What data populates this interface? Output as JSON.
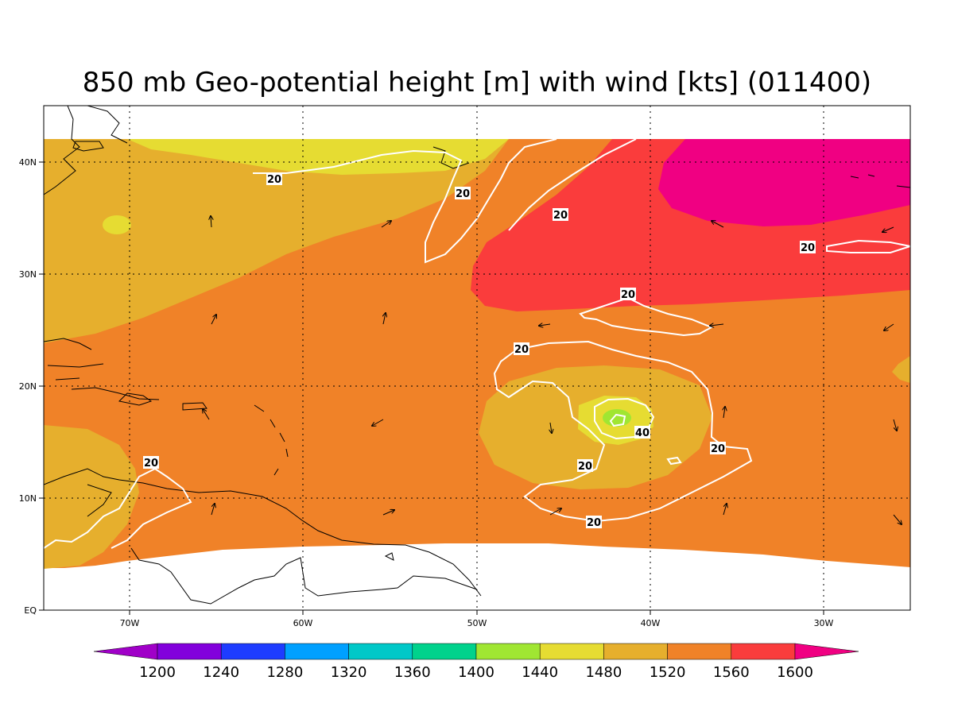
{
  "title": "850 mb Geo-potential height [m] with wind [kts] (011400)",
  "map": {
    "lon_range": [
      -75,
      -25
    ],
    "lat_range": [
      0,
      45
    ],
    "lon_ticks": [
      "70W",
      "60W",
      "50W",
      "40W",
      "30W"
    ],
    "lat_ticks": [
      "EQ",
      "10N",
      "20N",
      "30N",
      "40N"
    ]
  },
  "fill_colors": {
    "c1440": "#a0e632",
    "c1480": "#e6dc32",
    "c1520": "#e6af2d",
    "c1560": "#f08228",
    "c1600": "#fa3c3c",
    "cmax": "#f00082"
  },
  "wind_contour_labels": [
    {
      "id": "l1",
      "text": "20"
    },
    {
      "id": "l2",
      "text": "20"
    },
    {
      "id": "l3",
      "text": "20"
    },
    {
      "id": "l4",
      "text": "20"
    },
    {
      "id": "l5",
      "text": "20"
    },
    {
      "id": "l6",
      "text": "20"
    },
    {
      "id": "l7",
      "text": "40"
    },
    {
      "id": "l8",
      "text": "20"
    },
    {
      "id": "l9",
      "text": "20"
    },
    {
      "id": "l10",
      "text": "20"
    },
    {
      "id": "l11",
      "text": "20"
    }
  ],
  "colorbar": {
    "labels": [
      "1200",
      "1240",
      "1280",
      "1320",
      "1360",
      "1400",
      "1440",
      "1480",
      "1520",
      "1560",
      "1600"
    ],
    "colors": [
      "#a000c8",
      "#8200dc",
      "#1e3cff",
      "#00a0ff",
      "#00c8c8",
      "#00d28c",
      "#a0e632",
      "#e6dc32",
      "#e6af2d",
      "#f08228",
      "#fa3c3c",
      "#f00082"
    ]
  }
}
